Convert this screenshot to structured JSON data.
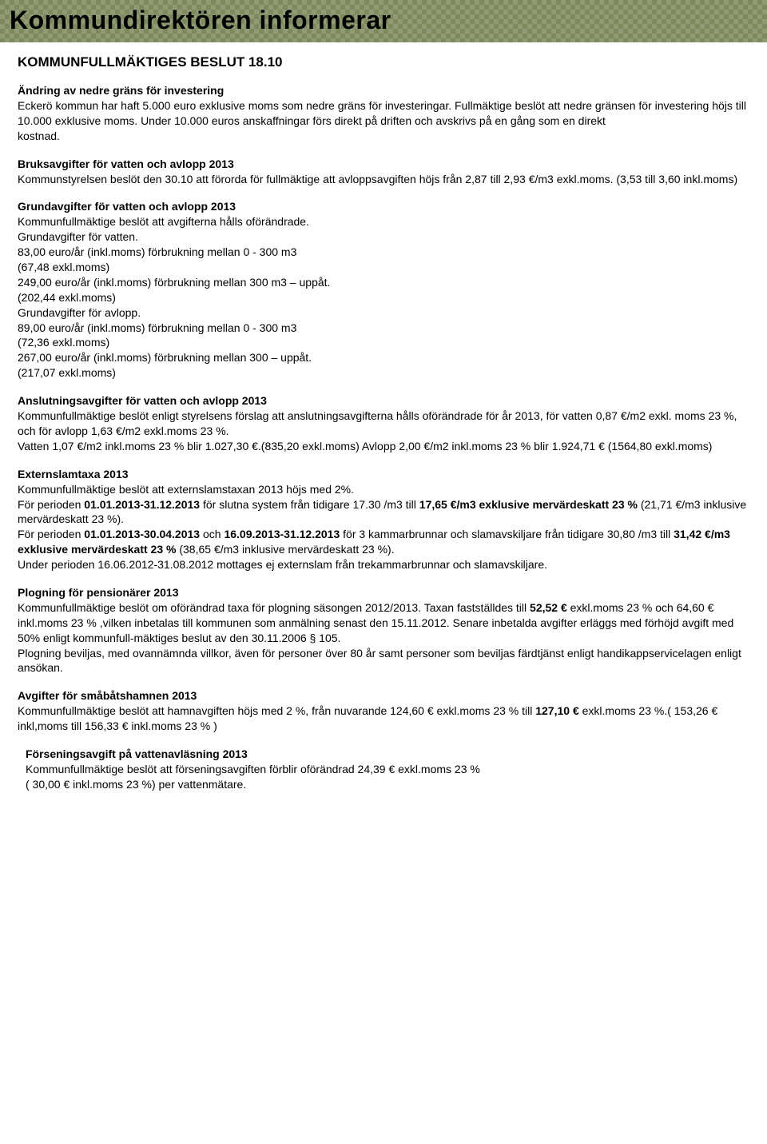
{
  "banner": {
    "title": "Kommundirektören informerar"
  },
  "page": {
    "subtitle": "KOMMUNFULLMÄKTIGES BESLUT 18.10"
  },
  "sections": {
    "s1": {
      "title": "Ändring av nedre gräns för investering",
      "body": "Eckerö kommun har haft 5.000 euro exklusive moms som nedre gräns för investeringar. Fullmäktige beslöt att nedre gränsen för investering höjs till 10.000 exklusive moms. Under 10.000 euros anskaffningar förs direkt på driften och avskrivs på en gång som en direkt\nkostnad."
    },
    "s2": {
      "title": "Bruksavgifter för vatten och avlopp 2013",
      "body": "Kommunstyrelsen beslöt den 30.10 att förorda för fullmäktige att avloppsavgiften höjs från 2,87 till 2,93 €/m3 exkl.moms. (3,53 till 3,60 inkl.moms)"
    },
    "s3": {
      "title": "Grundavgifter för vatten och avlopp 2013",
      "body": "Kommunfullmäktige beslöt att avgifterna hålls oförändrade.\nGrundavgifter för vatten.\n83,00 euro/år (inkl.moms) förbrukning mellan 0 - 300 m3\n(67,48 exkl.moms)\n249,00 euro/år (inkl.moms) förbrukning mellan 300 m3 – uppåt.\n(202,44 exkl.moms)\nGrundavgifter för avlopp.\n89,00 euro/år (inkl.moms) förbrukning mellan 0 - 300 m3\n(72,36 exkl.moms)\n267,00 euro/år (inkl.moms) förbrukning mellan 300 – uppåt.\n(217,07 exkl.moms)"
    },
    "s4": {
      "title": "Anslutningsavgifter för vatten och avlopp 2013",
      "body": "Kommunfullmäktige beslöt enligt styrelsens förslag att anslutningsavgifterna hålls oförändrade för år 2013, för vatten 0,87 €/m2 exkl. moms 23 %, och för avlopp 1,63 €/m2 exkl.moms 23 %.\nVatten 1,07 €/m2 inkl.moms 23 % blir 1.027,30 €.(835,20 exkl.moms) Avlopp 2,00 €/m2 inkl.moms 23 % blir 1.924,71 € (1564,80 exkl.moms)"
    },
    "s5": {
      "title": "Externslamtaxa 2013",
      "body_pre": "Kommunfullmäktige beslöt att externslamstaxan 2013 höjs med 2%.\nFör perioden ",
      "b1": "01.01.2013-31.12.2013",
      "body_mid1": " för slutna system från tidigare 17.30 /m3 till ",
      "b2": "17,65 €/m3 exklusive mervärdeskatt 23 %",
      "body_mid2": " (21,71 €/m3 inklusive mervärdeskatt 23 %).\nFör perioden ",
      "b3": "01.01.2013-30.04.2013",
      "body_mid3": " och ",
      "b4": "16.09.2013-31.12.2013",
      "body_mid4": " för 3 kammarbrunnar och slamavskiljare från tidigare 30,80 /m3 till ",
      "b5": "31,42 €/m3 exklusive mervärdeskatt 23 %",
      "body_post": " (38,65 €/m3 inklusive mervärdeskatt 23 %).\nUnder perioden 16.06.2012-31.08.2012 mottages ej externslam från trekammarbrunnar och slamavskiljare."
    },
    "s6": {
      "title": "Plogning för pensionärer 2013",
      "body_pre": "Kommunfullmäktige beslöt om oförändrad taxa för plogning säsongen 2012/2013. Taxan fastställdes till ",
      "b1": "52,52 €",
      "body_post": " exkl.moms 23 % och 64,60 € inkl.moms 23 % ,vilken inbetalas till kommunen som anmälning senast den 15.11.2012. Senare inbetalda avgifter erläggs med förhöjd avgift med 50% enligt kommunfull-mäktiges beslut av den 30.11.2006 § 105.\nPlogning beviljas, med ovannämnda villkor, även för personer över 80 år samt personer som beviljas färdtjänst enligt handikappservicelagen enligt ansökan."
    },
    "s7": {
      "title": "Avgifter för småbåtshamnen 2013",
      "body_pre": "Kommunfullmäktige beslöt att hamnavgiften höjs med 2 %, från nuvarande 124,60 € exkl.moms 23 % till ",
      "b1": "127,10 €",
      "body_post": " exkl.moms 23 %.( 153,26 € inkl,moms till 156,33 € inkl.moms 23 % )"
    },
    "s8": {
      "title": "Förseningsavgift på vattenavläsning 2013",
      "body": "Kommunfullmäktige beslöt att förseningsavgiften förblir oförändrad 24,39 € exkl.moms 23 %\n( 30,00 € inkl.moms 23 %) per vattenmätare."
    }
  }
}
